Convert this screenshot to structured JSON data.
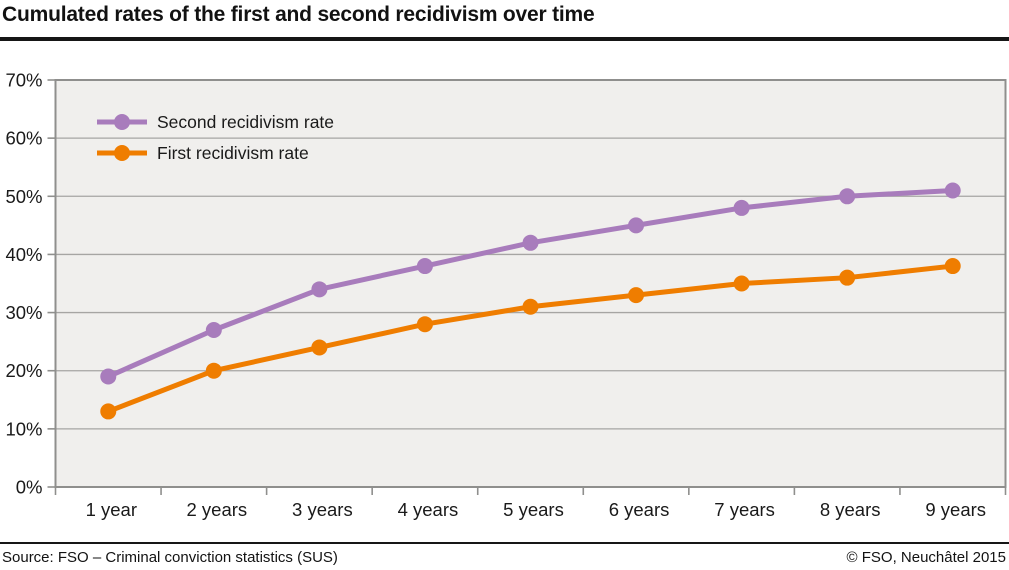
{
  "header": {
    "title": "Cumulated rates of the first and second recidivism over time"
  },
  "footer": {
    "source": "Source: FSO – Criminal conviction statistics (SUS)",
    "copyright": "© FSO, Neuchâtel 2015"
  },
  "chart_data": {
    "type": "line",
    "title": "Cumulated rates of the first and second recidivism over time",
    "categories": [
      "1 year",
      "2 years",
      "3 years",
      "4 years",
      "5 years",
      "6 years",
      "7 years",
      "8 years",
      "9 years"
    ],
    "series": [
      {
        "name": "Second recidivism rate",
        "color": "#a87cbc",
        "values": [
          19,
          27,
          34,
          38,
          42,
          45,
          48,
          50,
          51
        ]
      },
      {
        "name": "First recidivism rate",
        "color": "#ef7d00",
        "values": [
          13,
          20,
          24,
          28,
          31,
          33,
          35,
          36,
          38
        ]
      }
    ],
    "xlabel": "",
    "ylabel": "",
    "ylim": [
      0,
      70
    ],
    "ytick_step": 10,
    "ytick_labels": [
      "0%",
      "10%",
      "20%",
      "30%",
      "40%",
      "50%",
      "60%",
      "70%"
    ],
    "grid": true,
    "legend_position": "top-left",
    "colors": {
      "plot_bg": "#f0efed",
      "grid": "#a6a5a3",
      "border": "#8f8f8d",
      "tick_label": "#1a1a1a"
    }
  }
}
